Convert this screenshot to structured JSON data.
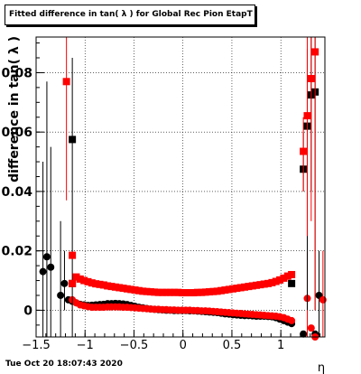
{
  "chart_data": {
    "type": "scatter",
    "title": "Fitted difference in tan( λ ) for Global Rec Pion EtapT",
    "xlabel": "η",
    "ylabel": "difference in tan( λ )",
    "xlim": [
      -1.5,
      1.45
    ],
    "ylim": [
      -0.009,
      0.092
    ],
    "x_ticks": [
      -1.5,
      -1,
      -0.5,
      0,
      0.5,
      1
    ],
    "x_tick_labels": [
      "−1.5",
      "−1",
      "−0.5",
      "0",
      "0.5",
      "1"
    ],
    "y_ticks": [
      0,
      0.02,
      0.04,
      0.06,
      0.08
    ],
    "y_tick_labels": [
      "0",
      "0.02",
      "0.04",
      "0.06",
      "0.08"
    ],
    "grid": true,
    "footer": "Tue Oct 20 18:07:43 2020",
    "series": [
      {
        "marker": "circle",
        "color": "#000000",
        "points": [
          {
            "x": -1.43,
            "y": 0.013,
            "lo": -0.009,
            "hi": 0.05
          },
          {
            "x": -1.39,
            "y": 0.018,
            "lo": -0.009,
            "hi": 0.077
          },
          {
            "x": -1.35,
            "y": 0.0145,
            "lo": -0.009,
            "hi": 0.055
          },
          {
            "x": -1.25,
            "y": 0.005,
            "lo": -0.009,
            "hi": 0.03
          },
          {
            "x": -1.21,
            "y": 0.009,
            "lo": 0.0,
            "hi": 0.02
          },
          {
            "x": -1.17,
            "y": 0.0035
          },
          {
            "x": -1.13,
            "y": 0.003
          },
          {
            "x": -1.09,
            "y": 0.0025
          },
          {
            "x": -1.05,
            "y": 0.002
          },
          {
            "x": -1.01,
            "y": 0.0018
          },
          {
            "x": -0.97,
            "y": 0.0016
          },
          {
            "x": -0.93,
            "y": 0.0017
          },
          {
            "x": -0.89,
            "y": 0.0018
          },
          {
            "x": -0.85,
            "y": 0.0019
          },
          {
            "x": -0.81,
            "y": 0.002
          },
          {
            "x": -0.77,
            "y": 0.0022
          },
          {
            "x": -0.73,
            "y": 0.0022
          },
          {
            "x": -0.69,
            "y": 0.0023
          },
          {
            "x": -0.65,
            "y": 0.0022
          },
          {
            "x": -0.61,
            "y": 0.0021
          },
          {
            "x": -0.57,
            "y": 0.0019
          },
          {
            "x": -0.53,
            "y": 0.0016
          },
          {
            "x": -0.49,
            "y": 0.0013
          },
          {
            "x": -0.45,
            "y": 0.001
          },
          {
            "x": -0.41,
            "y": 0.0008
          },
          {
            "x": -0.37,
            "y": 0.0006
          },
          {
            "x": -0.33,
            "y": 0.0004
          },
          {
            "x": -0.29,
            "y": 0.0003
          },
          {
            "x": -0.25,
            "y": 0.0002
          },
          {
            "x": -0.21,
            "y": 0.0001
          },
          {
            "x": -0.17,
            "y": 0.0
          },
          {
            "x": -0.13,
            "y": 0.0
          },
          {
            "x": -0.09,
            "y": -0.0001
          },
          {
            "x": -0.05,
            "y": -0.0001
          },
          {
            "x": -0.01,
            "y": -0.0001
          },
          {
            "x": 0.03,
            "y": -0.0001
          },
          {
            "x": 0.07,
            "y": -0.0002
          },
          {
            "x": 0.11,
            "y": -0.0002
          },
          {
            "x": 0.15,
            "y": -0.0003
          },
          {
            "x": 0.19,
            "y": -0.0004
          },
          {
            "x": 0.23,
            "y": -0.0005
          },
          {
            "x": 0.27,
            "y": -0.0006
          },
          {
            "x": 0.31,
            "y": -0.0007
          },
          {
            "x": 0.35,
            "y": -0.0008
          },
          {
            "x": 0.39,
            "y": -0.001
          },
          {
            "x": 0.43,
            "y": -0.0012
          },
          {
            "x": 0.47,
            "y": -0.0013
          },
          {
            "x": 0.51,
            "y": -0.0015
          },
          {
            "x": 0.55,
            "y": -0.0016
          },
          {
            "x": 0.59,
            "y": -0.0017
          },
          {
            "x": 0.63,
            "y": -0.0018
          },
          {
            "x": 0.67,
            "y": -0.0018
          },
          {
            "x": 0.71,
            "y": -0.0019
          },
          {
            "x": 0.75,
            "y": -0.002
          },
          {
            "x": 0.79,
            "y": -0.002
          },
          {
            "x": 0.83,
            "y": -0.002
          },
          {
            "x": 0.87,
            "y": -0.0021
          },
          {
            "x": 0.91,
            "y": -0.0022
          },
          {
            "x": 0.95,
            "y": -0.0025
          },
          {
            "x": 0.99,
            "y": -0.003
          },
          {
            "x": 1.03,
            "y": -0.0035
          },
          {
            "x": 1.07,
            "y": -0.004
          },
          {
            "x": 1.11,
            "y": -0.0045
          },
          {
            "x": 1.23,
            "y": -0.008
          },
          {
            "x": 1.35,
            "y": -0.008
          },
          {
            "x": 1.39,
            "y": 0.005,
            "lo": -0.009,
            "hi": 0.02
          }
        ]
      },
      {
        "marker": "circle",
        "color": "#ff0000",
        "points": [
          {
            "x": -1.13,
            "y": 0.0035
          },
          {
            "x": -1.09,
            "y": 0.0025
          },
          {
            "x": -1.05,
            "y": 0.0018
          },
          {
            "x": -1.01,
            "y": 0.0015
          },
          {
            "x": -0.97,
            "y": 0.0012
          },
          {
            "x": -0.93,
            "y": 0.001
          },
          {
            "x": -0.89,
            "y": 0.001
          },
          {
            "x": -0.85,
            "y": 0.001
          },
          {
            "x": -0.81,
            "y": 0.001
          },
          {
            "x": -0.77,
            "y": 0.0011
          },
          {
            "x": -0.73,
            "y": 0.0011
          },
          {
            "x": -0.69,
            "y": 0.0011
          },
          {
            "x": -0.65,
            "y": 0.0011
          },
          {
            "x": -0.61,
            "y": 0.001
          },
          {
            "x": -0.57,
            "y": 0.001
          },
          {
            "x": -0.53,
            "y": 0.0009
          },
          {
            "x": -0.49,
            "y": 0.0008
          },
          {
            "x": -0.45,
            "y": 0.0007
          },
          {
            "x": -0.41,
            "y": 0.0006
          },
          {
            "x": -0.37,
            "y": 0.0005
          },
          {
            "x": -0.33,
            "y": 0.0004
          },
          {
            "x": -0.29,
            "y": 0.0003
          },
          {
            "x": -0.25,
            "y": 0.0003
          },
          {
            "x": -0.21,
            "y": 0.0002
          },
          {
            "x": -0.17,
            "y": 0.0002
          },
          {
            "x": -0.13,
            "y": 0.0001
          },
          {
            "x": -0.09,
            "y": 0.0001
          },
          {
            "x": -0.05,
            "y": 0.0
          },
          {
            "x": -0.01,
            "y": 0.0
          },
          {
            "x": 0.03,
            "y": 0.0
          },
          {
            "x": 0.07,
            "y": 0.0
          },
          {
            "x": 0.11,
            "y": -0.0001
          },
          {
            "x": 0.15,
            "y": -0.0001
          },
          {
            "x": 0.19,
            "y": -0.0002
          },
          {
            "x": 0.23,
            "y": -0.0002
          },
          {
            "x": 0.27,
            "y": -0.0003
          },
          {
            "x": 0.31,
            "y": -0.0004
          },
          {
            "x": 0.35,
            "y": -0.0005
          },
          {
            "x": 0.39,
            "y": -0.0006
          },
          {
            "x": 0.43,
            "y": -0.0007
          },
          {
            "x": 0.47,
            "y": -0.0008
          },
          {
            "x": 0.51,
            "y": -0.0009
          },
          {
            "x": 0.55,
            "y": -0.001
          },
          {
            "x": 0.59,
            "y": -0.0011
          },
          {
            "x": 0.63,
            "y": -0.0012
          },
          {
            "x": 0.67,
            "y": -0.0013
          },
          {
            "x": 0.71,
            "y": -0.0014
          },
          {
            "x": 0.75,
            "y": -0.0015
          },
          {
            "x": 0.79,
            "y": -0.0016
          },
          {
            "x": 0.83,
            "y": -0.0017
          },
          {
            "x": 0.87,
            "y": -0.0018
          },
          {
            "x": 0.91,
            "y": -0.0019
          },
          {
            "x": 0.95,
            "y": -0.002
          },
          {
            "x": 0.99,
            "y": -0.0022
          },
          {
            "x": 1.03,
            "y": -0.0025
          },
          {
            "x": 1.07,
            "y": -0.003
          },
          {
            "x": 1.11,
            "y": -0.0035
          },
          {
            "x": 1.27,
            "y": 0.004,
            "lo": -0.009,
            "hi": 0.02
          },
          {
            "x": 1.31,
            "y": -0.006
          },
          {
            "x": 1.35,
            "y": -0.009
          },
          {
            "x": 1.43,
            "y": 0.0035,
            "lo": -0.009,
            "hi": 0.02
          }
        ]
      },
      {
        "marker": "square",
        "color": "#000000",
        "points": [
          {
            "x": -1.13,
            "y": 0.0575,
            "lo": -0.009,
            "hi": 0.085
          },
          {
            "x": -1.13,
            "y": 0.009
          },
          {
            "x": 1.11,
            "y": 0.009
          },
          {
            "x": 1.23,
            "y": 0.0475,
            "lo": 0.04,
            "hi": 0.06
          },
          {
            "x": 1.27,
            "y": 0.062,
            "lo": 0.0,
            "hi": 0.088
          },
          {
            "x": 1.31,
            "y": 0.0725,
            "lo": 0.04,
            "hi": 0.092
          },
          {
            "x": 1.35,
            "y": 0.0735,
            "lo": 0.0,
            "hi": 0.092
          }
        ]
      },
      {
        "marker": "square",
        "color": "#ff0000",
        "points": [
          {
            "x": -1.19,
            "y": 0.077,
            "lo": 0.037,
            "hi": 0.092
          },
          {
            "x": -1.13,
            "y": 0.0185
          },
          {
            "x": -1.13,
            "y": 0.009
          },
          {
            "x": -1.09,
            "y": 0.0112
          },
          {
            "x": -1.05,
            "y": 0.0105
          },
          {
            "x": -1.01,
            "y": 0.01
          },
          {
            "x": -0.97,
            "y": 0.0096
          },
          {
            "x": -0.93,
            "y": 0.0092
          },
          {
            "x": -0.89,
            "y": 0.0089
          },
          {
            "x": -0.85,
            "y": 0.0087
          },
          {
            "x": -0.81,
            "y": 0.0085
          },
          {
            "x": -0.77,
            "y": 0.0082
          },
          {
            "x": -0.73,
            "y": 0.008
          },
          {
            "x": -0.69,
            "y": 0.0078
          },
          {
            "x": -0.65,
            "y": 0.0076
          },
          {
            "x": -0.61,
            "y": 0.0074
          },
          {
            "x": -0.57,
            "y": 0.0072
          },
          {
            "x": -0.53,
            "y": 0.007
          },
          {
            "x": -0.49,
            "y": 0.0068
          },
          {
            "x": -0.45,
            "y": 0.0066
          },
          {
            "x": -0.41,
            "y": 0.0064
          },
          {
            "x": -0.37,
            "y": 0.0063
          },
          {
            "x": -0.33,
            "y": 0.0062
          },
          {
            "x": -0.29,
            "y": 0.0061
          },
          {
            "x": -0.25,
            "y": 0.006
          },
          {
            "x": -0.21,
            "y": 0.006
          },
          {
            "x": -0.17,
            "y": 0.006
          },
          {
            "x": -0.13,
            "y": 0.006
          },
          {
            "x": -0.09,
            "y": 0.006
          },
          {
            "x": -0.05,
            "y": 0.006
          },
          {
            "x": -0.01,
            "y": 0.0059
          },
          {
            "x": 0.03,
            "y": 0.0059
          },
          {
            "x": 0.07,
            "y": 0.0059
          },
          {
            "x": 0.11,
            "y": 0.0059
          },
          {
            "x": 0.15,
            "y": 0.006
          },
          {
            "x": 0.19,
            "y": 0.006
          },
          {
            "x": 0.23,
            "y": 0.0061
          },
          {
            "x": 0.27,
            "y": 0.0062
          },
          {
            "x": 0.31,
            "y": 0.0063
          },
          {
            "x": 0.35,
            "y": 0.0064
          },
          {
            "x": 0.39,
            "y": 0.0066
          },
          {
            "x": 0.43,
            "y": 0.0068
          },
          {
            "x": 0.47,
            "y": 0.007
          },
          {
            "x": 0.51,
            "y": 0.0072
          },
          {
            "x": 0.55,
            "y": 0.0074
          },
          {
            "x": 0.59,
            "y": 0.0076
          },
          {
            "x": 0.63,
            "y": 0.0078
          },
          {
            "x": 0.67,
            "y": 0.008
          },
          {
            "x": 0.71,
            "y": 0.0082
          },
          {
            "x": 0.75,
            "y": 0.0084
          },
          {
            "x": 0.79,
            "y": 0.0086
          },
          {
            "x": 0.83,
            "y": 0.0088
          },
          {
            "x": 0.87,
            "y": 0.009
          },
          {
            "x": 0.91,
            "y": 0.0093
          },
          {
            "x": 0.95,
            "y": 0.0097
          },
          {
            "x": 0.99,
            "y": 0.0102
          },
          {
            "x": 1.03,
            "y": 0.0108
          },
          {
            "x": 1.07,
            "y": 0.0115
          },
          {
            "x": 1.11,
            "y": 0.012
          },
          {
            "x": 1.23,
            "y": 0.0535,
            "lo": 0.04,
            "hi": 0.065
          },
          {
            "x": 1.27,
            "y": 0.0655,
            "lo": 0.025,
            "hi": 0.092
          },
          {
            "x": 1.31,
            "y": 0.078,
            "lo": 0.03,
            "hi": 0.092
          },
          {
            "x": 1.35,
            "y": 0.087,
            "lo": 0.0,
            "hi": 0.092
          }
        ]
      }
    ]
  }
}
